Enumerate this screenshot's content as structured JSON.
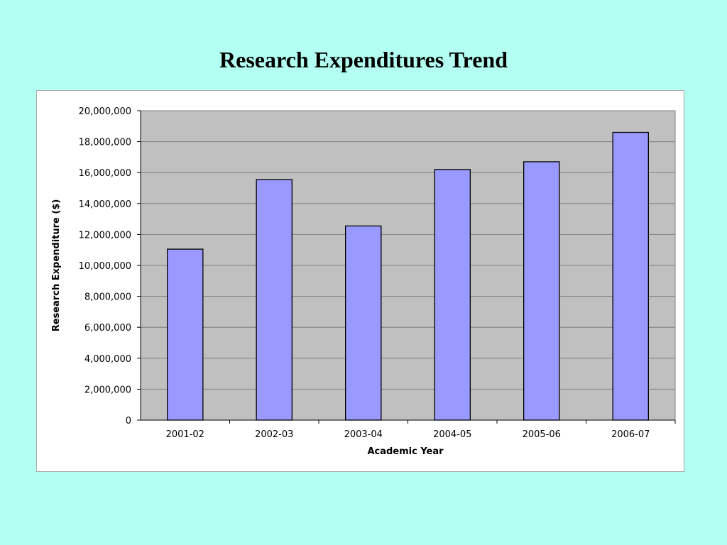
{
  "slide": {
    "title": "Research Expenditures Trend"
  },
  "colors": {
    "background": "#b3fff2",
    "plot_area": "#c0c0c0",
    "bar_fill": "#9999ff",
    "bar_stroke": "#000000",
    "gridline": "#808080"
  },
  "chart_data": {
    "type": "bar",
    "title": "",
    "xlabel": "Academic Year",
    "ylabel": "Research Expenditure ($)",
    "categories": [
      "2001-02",
      "2002-03",
      "2003-04",
      "2004-05",
      "2005-06",
      "2006-07"
    ],
    "values": [
      11050000,
      15550000,
      12550000,
      16200000,
      16700000,
      18600000
    ],
    "ylim": [
      0,
      20000000
    ],
    "yticks": [
      0,
      2000000,
      4000000,
      6000000,
      8000000,
      10000000,
      12000000,
      14000000,
      16000000,
      18000000,
      20000000
    ],
    "ytick_labels": [
      "0",
      "2,000,000",
      "4,000,000",
      "6,000,000",
      "8,000,000",
      "10,000,000",
      "12,000,000",
      "14,000,000",
      "16,000,000",
      "18,000,000",
      "20,000,000"
    ],
    "grid": true,
    "legend": "none"
  }
}
